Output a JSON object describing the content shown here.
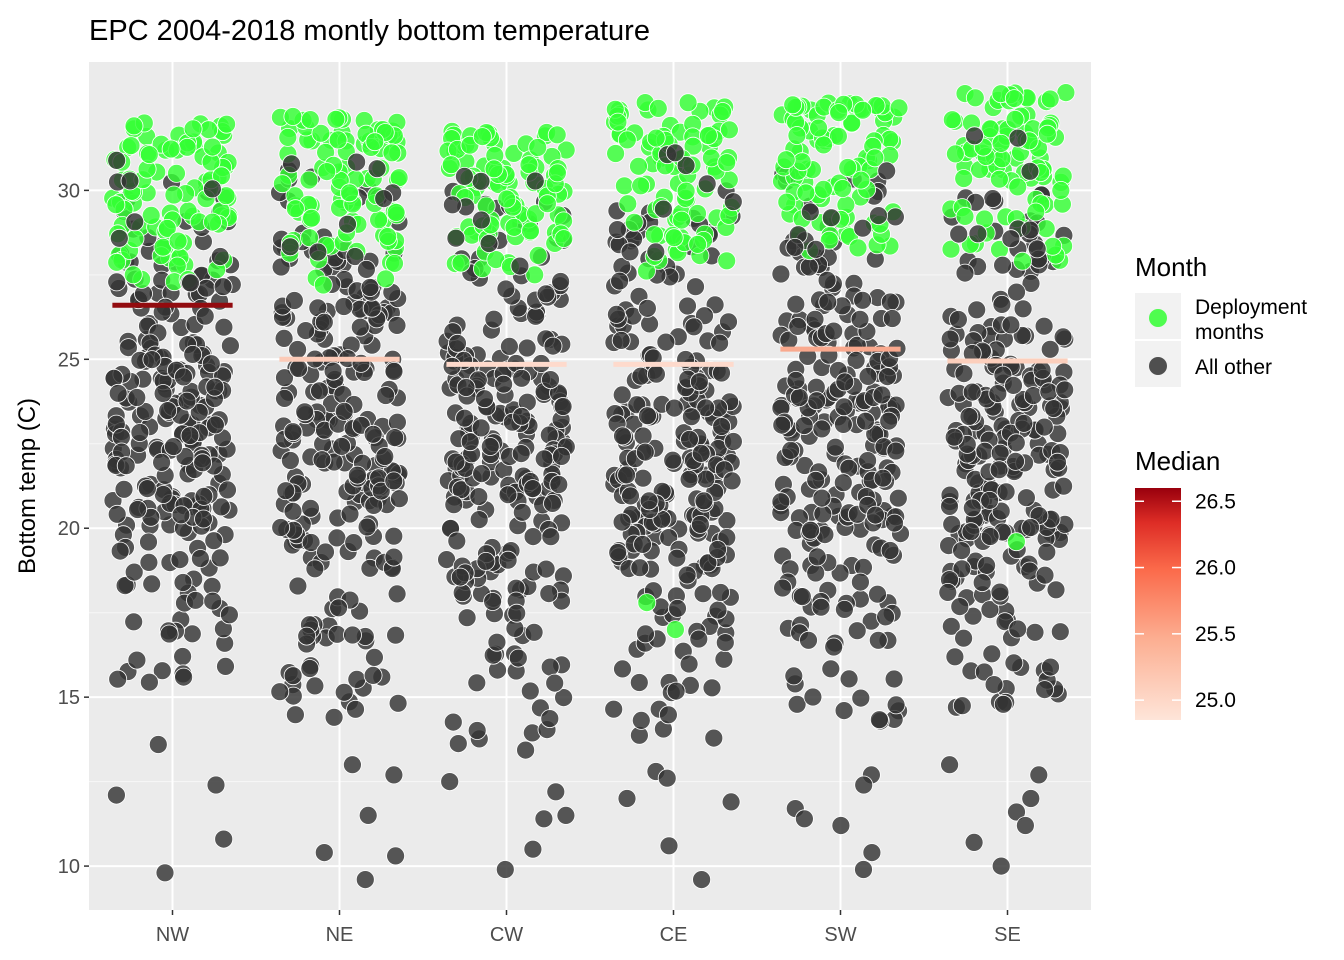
{
  "chart_data": {
    "type": "scatter",
    "title": "EPC 2004-2018 montly bottom temperature",
    "xlabel": "",
    "ylabel": "Bottom temp (C)",
    "categories": [
      "NW",
      "NE",
      "CW",
      "CE",
      "SW",
      "SE"
    ],
    "ylim": [
      8.7,
      33.8
    ],
    "y_ticks": [
      10,
      15,
      20,
      25,
      30
    ],
    "grid": true,
    "medians": [
      {
        "category": "NW",
        "value": 26.6,
        "color": "#920b0f"
      },
      {
        "category": "NE",
        "value": 25.0,
        "color": "#fccbb8"
      },
      {
        "category": "CW",
        "value": 24.85,
        "color": "#fedacc"
      },
      {
        "category": "CE",
        "value": 24.85,
        "color": "#fedacc"
      },
      {
        "category": "SW",
        "value": 25.3,
        "color": "#f9a98e"
      },
      {
        "category": "SE",
        "value": 24.95,
        "color": "#fccfbc"
      }
    ],
    "distributions": [
      {
        "category": "NW",
        "deployment_range": [
          27.2,
          32.1
        ],
        "deployment_extra": [
          28.5,
          27.5
        ],
        "other_range": [
          15.3,
          30.3
        ],
        "other_outliers": [
          13.6,
          12.4,
          12.1,
          10.8,
          9.8
        ]
      },
      {
        "category": "NE",
        "deployment_range": [
          27.3,
          32.2
        ],
        "deployment_extra": [
          28.6,
          27.2
        ],
        "other_range": [
          14.2,
          30.6
        ],
        "other_outliers": [
          13.0,
          12.7,
          11.5,
          10.4,
          10.3,
          9.6
        ]
      },
      {
        "category": "CW",
        "deployment_range": [
          27.3,
          31.8
        ],
        "deployment_extra": [
          27.5,
          28.8
        ],
        "other_range": [
          13.4,
          30.1
        ],
        "other_outliers": [
          12.5,
          12.2,
          11.5,
          11.4,
          10.5,
          9.9
        ]
      },
      {
        "category": "CE",
        "deployment_range": [
          27.5,
          32.6
        ],
        "deployment_extra": [
          17.8,
          17.0,
          28.4
        ],
        "other_range": [
          13.7,
          30.0
        ],
        "other_outliers": [
          12.8,
          12.6,
          12.0,
          11.9,
          10.6,
          9.6
        ]
      },
      {
        "category": "SW",
        "deployment_range": [
          28.0,
          32.6
        ],
        "deployment_extra": [
          28.7,
          29.0
        ],
        "other_range": [
          14.2,
          30.6
        ],
        "other_outliers": [
          12.7,
          12.4,
          11.7,
          11.4,
          11.2,
          10.4,
          9.9
        ]
      },
      {
        "category": "SE",
        "deployment_range": [
          27.7,
          32.9
        ],
        "deployment_extra": [
          19.6,
          28.4
        ],
        "other_range": [
          14.4,
          30.0
        ],
        "other_outliers": [
          13.0,
          12.7,
          12.0,
          11.6,
          11.2,
          10.7,
          10.0
        ]
      }
    ],
    "color_legend": {
      "title": "Month",
      "entries": [
        {
          "label": "Deployment months",
          "color": "#33ff33"
        },
        {
          "label": "All other",
          "color": "#333333"
        }
      ]
    },
    "median_legend": {
      "title": "Median",
      "range": [
        24.85,
        26.6
      ],
      "ticks": [
        "26.5",
        "26.0",
        "25.5",
        "25.0"
      ],
      "low_color": "#fee5d9",
      "high_color": "#99000d"
    }
  }
}
